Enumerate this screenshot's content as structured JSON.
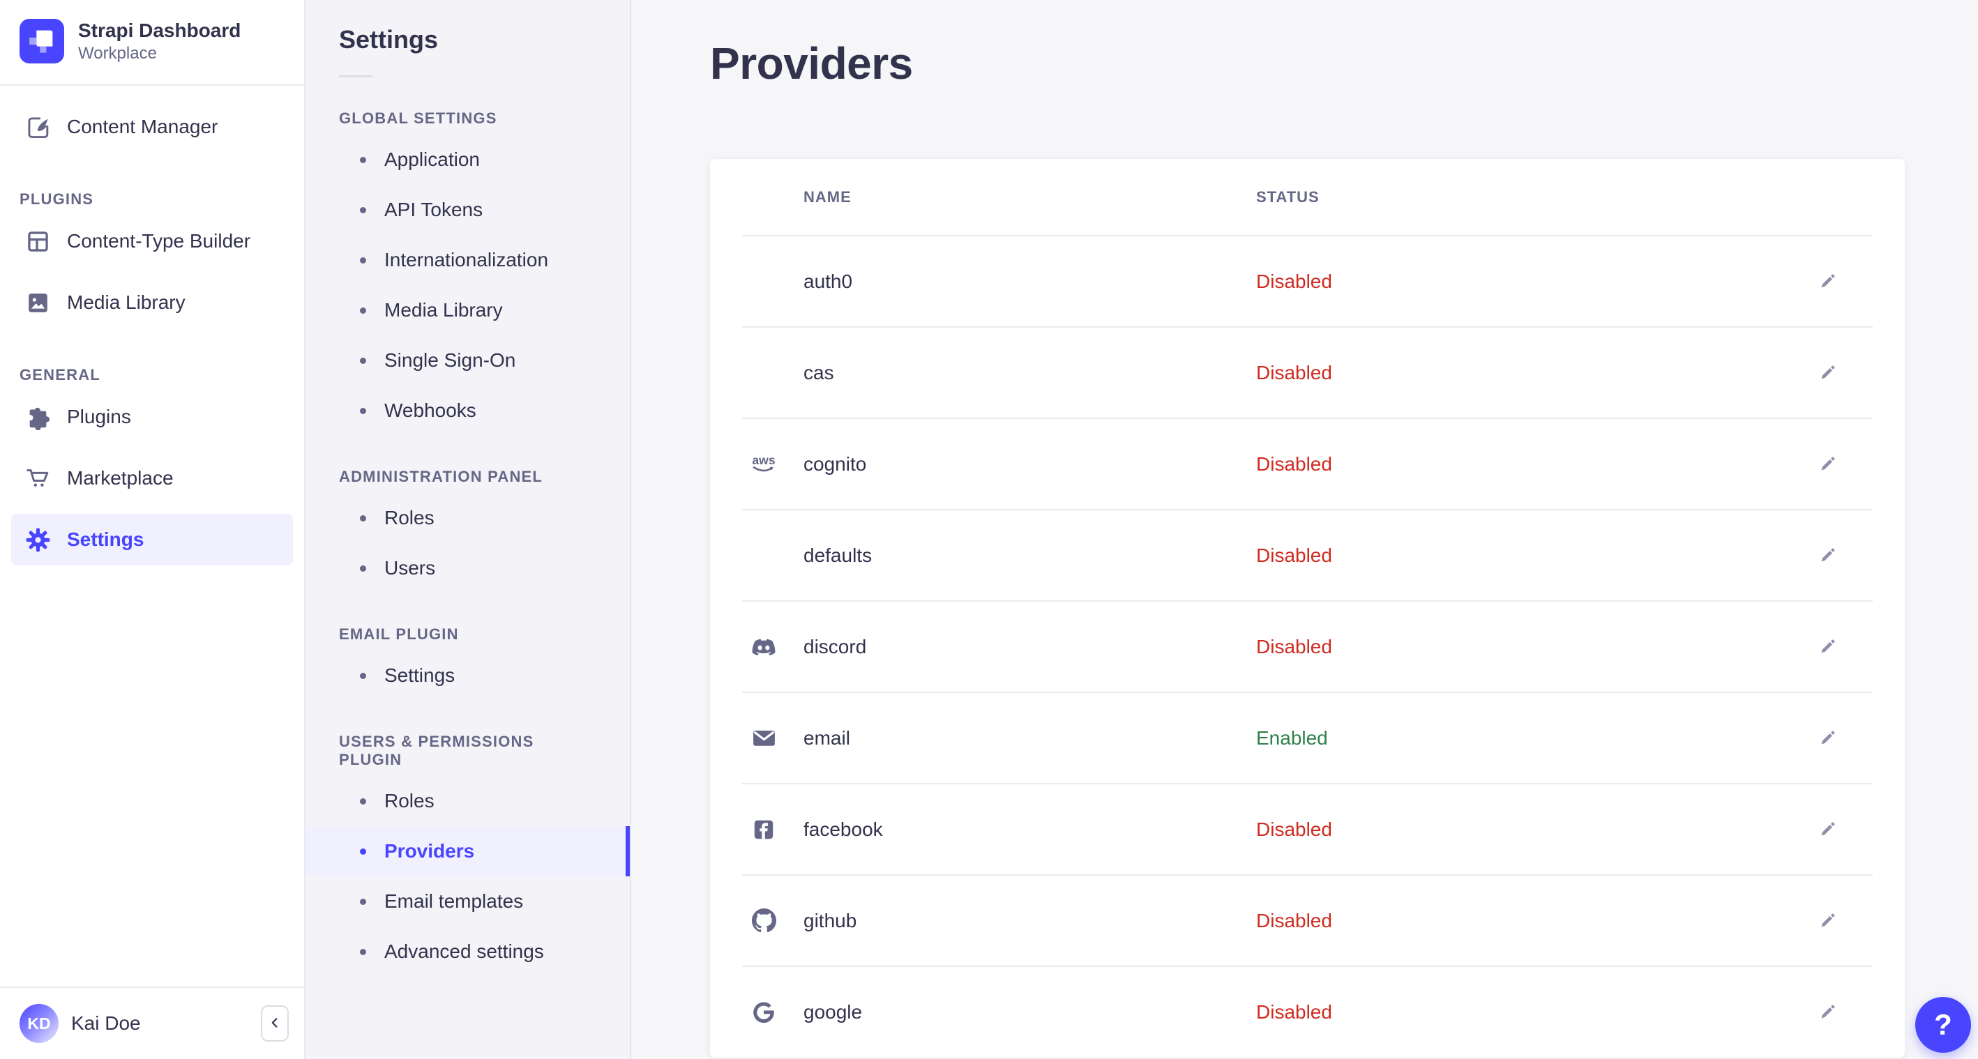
{
  "brand": {
    "title": "Strapi Dashboard",
    "subtitle": "Workplace",
    "logo_icon": "strapi-logo"
  },
  "sidebar": {
    "top_items": [
      {
        "label": "Content Manager",
        "icon": "content-manager-icon"
      }
    ],
    "sections": [
      {
        "label": "PLUGINS",
        "items": [
          {
            "label": "Content-Type Builder",
            "icon": "content-type-builder-icon"
          },
          {
            "label": "Media Library",
            "icon": "media-library-icon"
          }
        ]
      },
      {
        "label": "GENERAL",
        "items": [
          {
            "label": "Plugins",
            "icon": "plugins-icon"
          },
          {
            "label": "Marketplace",
            "icon": "marketplace-icon"
          },
          {
            "label": "Settings",
            "icon": "settings-gear-icon",
            "active": true
          }
        ]
      }
    ],
    "user": {
      "name": "Kai Doe",
      "initials": "KD"
    },
    "collapse_icon": "chevron-left-icon"
  },
  "subnav": {
    "title": "Settings",
    "sections": [
      {
        "label": "GLOBAL SETTINGS",
        "items": [
          {
            "label": "Application"
          },
          {
            "label": "API Tokens"
          },
          {
            "label": "Internationalization"
          },
          {
            "label": "Media Library"
          },
          {
            "label": "Single Sign-On"
          },
          {
            "label": "Webhooks"
          }
        ]
      },
      {
        "label": "ADMINISTRATION PANEL",
        "items": [
          {
            "label": "Roles"
          },
          {
            "label": "Users"
          }
        ]
      },
      {
        "label": "EMAIL PLUGIN",
        "items": [
          {
            "label": "Settings"
          }
        ]
      },
      {
        "label": "USERS & PERMISSIONS PLUGIN",
        "items": [
          {
            "label": "Roles"
          },
          {
            "label": "Providers",
            "active": true
          },
          {
            "label": "Email templates"
          },
          {
            "label": "Advanced settings"
          }
        ]
      }
    ]
  },
  "main": {
    "title": "Providers",
    "table": {
      "columns": [
        "NAME",
        "STATUS"
      ],
      "edit_icon": "pencil-icon",
      "rows": [
        {
          "name": "auth0",
          "icon": null,
          "status": "Disabled"
        },
        {
          "name": "cas",
          "icon": null,
          "status": "Disabled"
        },
        {
          "name": "cognito",
          "icon": "aws-icon",
          "status": "Disabled"
        },
        {
          "name": "defaults",
          "icon": null,
          "status": "Disabled"
        },
        {
          "name": "discord",
          "icon": "discord-icon",
          "status": "Disabled"
        },
        {
          "name": "email",
          "icon": "envelope-icon",
          "status": "Enabled"
        },
        {
          "name": "facebook",
          "icon": "facebook-icon",
          "status": "Disabled"
        },
        {
          "name": "github",
          "icon": "github-icon",
          "status": "Disabled"
        },
        {
          "name": "google",
          "icon": "google-icon",
          "status": "Disabled"
        }
      ]
    }
  },
  "help": {
    "label": "?",
    "icon": "question-mark-icon"
  },
  "colors": {
    "primary": "#4945ff",
    "active_bg": "#f0f0ff",
    "disabled_status": "#d02b20",
    "enabled_status": "#328048",
    "icon_slate": "#666687"
  }
}
